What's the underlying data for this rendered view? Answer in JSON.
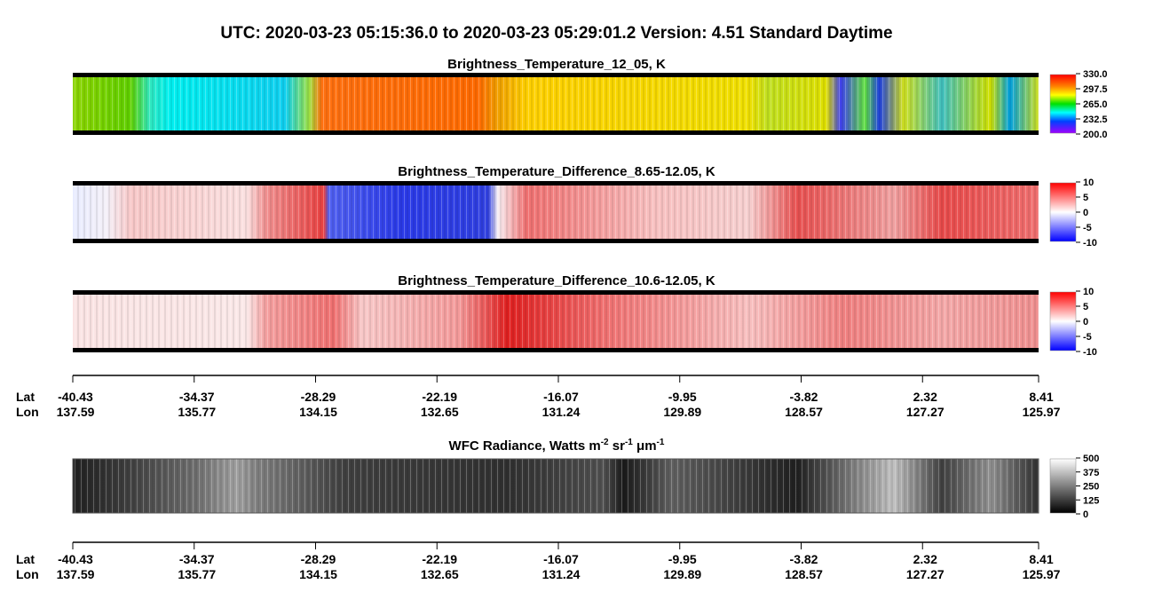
{
  "title": "UTC:  2020-03-23   05:15:36.0  to  2020-03-23   05:29:01.2    Version: 4.51  Standard Daytime",
  "panels": [
    {
      "title_parts": [
        "Brightness_Temperature_12_05, K"
      ],
      "colorbar_ticks": [
        "330.0",
        "297.5",
        "265.0",
        "232.5",
        "200.0"
      ]
    },
    {
      "title_parts": [
        "Brightness_Temperature_Difference_8.65-12.05, K"
      ],
      "colorbar_ticks": [
        "10",
        "5",
        "0",
        "-5",
        "-10"
      ]
    },
    {
      "title_parts": [
        "Brightness_Temperature_Difference_10.6-12.05, K"
      ],
      "colorbar_ticks": [
        "10",
        "5",
        "0",
        "-5",
        "-10"
      ]
    },
    {
      "title_parts": [
        "WFC Radiance, Watts m",
        "-2",
        " sr",
        "-1",
        " μm",
        "-1"
      ],
      "colorbar_ticks": [
        "500",
        "375",
        "250",
        "125",
        "0"
      ]
    }
  ],
  "axes": [
    {
      "lat_label": "Lat",
      "lon_label": "Lon",
      "lat": [
        "-40.43",
        "-34.37",
        "-28.29",
        "-22.19",
        "-16.07",
        "-9.95",
        "-3.82",
        "2.32",
        "8.41"
      ],
      "lon": [
        "137.59",
        "135.77",
        "134.15",
        "132.65",
        "131.24",
        "129.89",
        "128.57",
        "127.27",
        "125.97"
      ]
    },
    {
      "lat_label": "Lat",
      "lon_label": "Lon",
      "lat": [
        "-40.43",
        "-34.37",
        "-28.29",
        "-22.19",
        "-16.07",
        "-9.95",
        "-3.82",
        "2.32",
        "8.41"
      ],
      "lon": [
        "137.59",
        "135.77",
        "134.15",
        "132.65",
        "131.24",
        "129.89",
        "128.57",
        "127.27",
        "125.97"
      ]
    }
  ]
}
